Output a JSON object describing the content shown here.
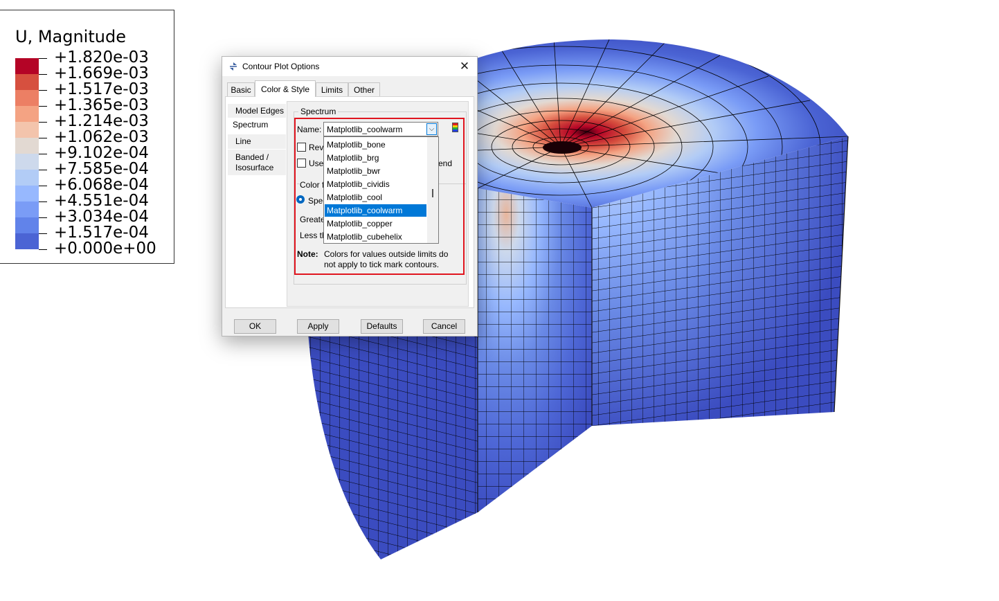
{
  "legend": {
    "title": "U, Magnitude",
    "labels": [
      "+1.820e-03",
      "+1.669e-03",
      "+1.517e-03",
      "+1.365e-03",
      "+1.214e-03",
      "+1.062e-03",
      "+9.102e-04",
      "+7.585e-04",
      "+6.068e-04",
      "+4.551e-04",
      "+3.034e-04",
      "+1.517e-04",
      "+0.000e+00"
    ],
    "colors": [
      "#b40426",
      "#d6503f",
      "#ec7f64",
      "#f4a383",
      "#f3c4ac",
      "#e2d9d2",
      "#cdd9ec",
      "#b2ccf6",
      "#97b8fe",
      "#7a9cf6",
      "#6183ea",
      "#4b64d4"
    ]
  },
  "dialog": {
    "title": "Contour Plot Options",
    "close": "✕",
    "tabs": [
      "Basic",
      "Color & Style",
      "Limits",
      "Other"
    ],
    "active_tab": "Color & Style",
    "side_tabs": [
      "Model Edges",
      "Spectrum",
      "Line",
      "Banded /\nIsosurface"
    ],
    "active_side_tab": "Spectrum",
    "group_label": "Spectrum",
    "name_label": "Name:",
    "name_value": "Matplotlib_coolwarm",
    "combo_arrow": "⌵",
    "checkbox_reverse": "Reve",
    "checkbox_use": "Use",
    "partial_end": "end",
    "color_for_label": "Color f",
    "radio_spectrum": "Spec",
    "greater_label": "Greate",
    "less_label": "Less th",
    "note_label": "Note:",
    "note_text": "Colors for values outside limits do not apply to tick mark contours.",
    "dropdown_items": [
      "Matplotlib_bone",
      "Matplotlib_brg",
      "Matplotlib_bwr",
      "Matplotlib_cividis",
      "Matplotlib_cool",
      "Matplotlib_coolwarm",
      "Matplotlib_copper",
      "Matplotlib_cubehelix"
    ],
    "dropdown_selected": "Matplotlib_coolwarm",
    "buttons": {
      "ok": "OK",
      "apply": "Apply",
      "defaults": "Defaults",
      "cancel": "Cancel"
    },
    "accent_color": "#0078d7",
    "highlight_color": "#e0141e"
  }
}
